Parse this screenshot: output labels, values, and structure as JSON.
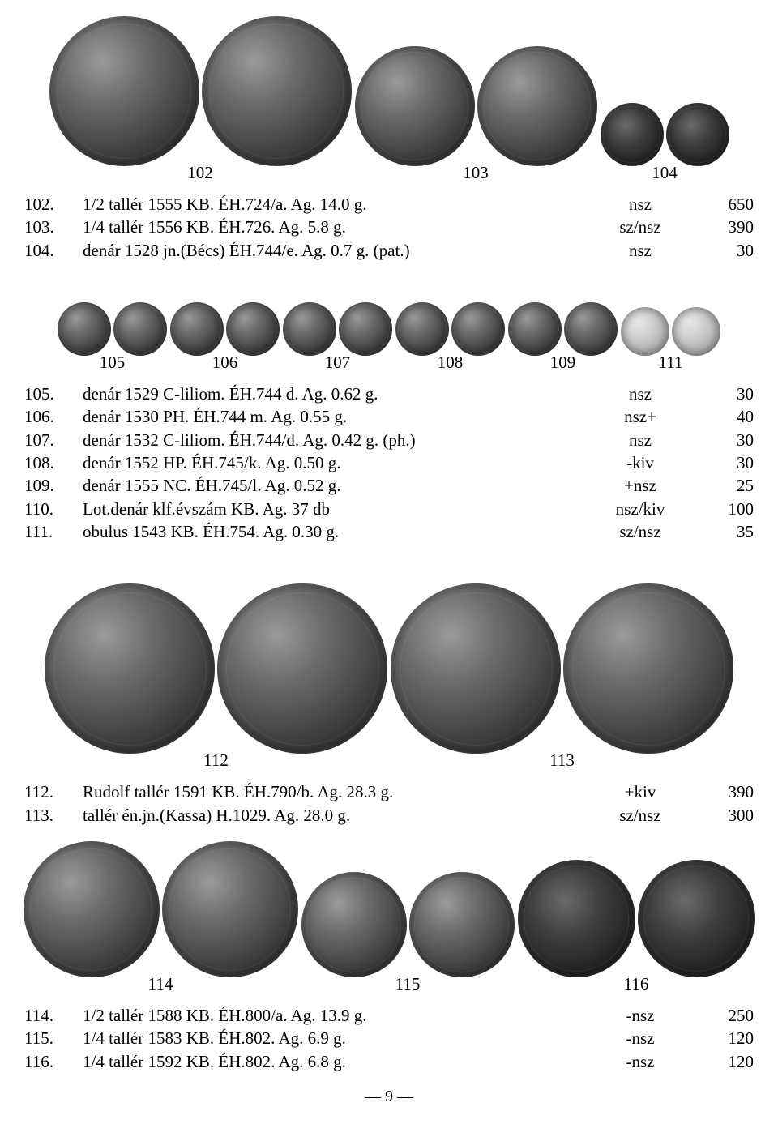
{
  "page_number": "— 9 —",
  "figure1": {
    "groups": [
      {
        "label": "102",
        "sizes": [
          185,
          185
        ]
      },
      {
        "label": "103",
        "sizes": [
          148,
          148
        ]
      },
      {
        "label": "104",
        "sizes": [
          78,
          78
        ],
        "darker": true
      }
    ]
  },
  "lots1": [
    {
      "n": "102.",
      "d": "1/2 tallér 1555 KB. ÉH.724/a. Ag. 14.0 g.",
      "g": "nsz",
      "p": "650"
    },
    {
      "n": "103.",
      "d": "1/4 tallér 1556 KB. ÉH.726. Ag. 5.8 g.",
      "g": "sz/nsz",
      "p": "390"
    },
    {
      "n": "104.",
      "d": "denár 1528 jn.(Bécs) ÉH.744/e. Ag. 0.7 g. (pat.)",
      "g": "nsz",
      "p": "30"
    }
  ],
  "figure2": {
    "groups": [
      {
        "label": "105",
        "sizes": [
          66,
          66
        ]
      },
      {
        "label": "106",
        "sizes": [
          66,
          66
        ]
      },
      {
        "label": "107",
        "sizes": [
          66,
          66
        ]
      },
      {
        "label": "108",
        "sizes": [
          66,
          66
        ]
      },
      {
        "label": "109",
        "sizes": [
          66,
          66
        ]
      },
      {
        "label": "111",
        "sizes": [
          60,
          60
        ],
        "light": true
      }
    ]
  },
  "lots2": [
    {
      "n": "105.",
      "d": "denár 1529 C-liliom. ÉH.744 d. Ag. 0.62 g.",
      "g": "nsz",
      "p": "30"
    },
    {
      "n": "106.",
      "d": "denár 1530 PH. ÉH.744 m. Ag. 0.55 g.",
      "g": "nsz+",
      "p": "40"
    },
    {
      "n": "107.",
      "d": "denár 1532 C-liliom. ÉH.744/d. Ag. 0.42 g. (ph.)",
      "g": "nsz",
      "p": "30"
    },
    {
      "n": "108.",
      "d": "denár 1552 HP. ÉH.745/k. Ag. 0.50 g.",
      "g": "-kiv",
      "p": "30"
    },
    {
      "n": "109.",
      "d": "denár 1555 NC. ÉH.745/l. Ag. 0.52 g.",
      "g": "+nsz",
      "p": "25"
    },
    {
      "n": "110.",
      "d": "Lot.denár klf.évszám KB. Ag.  37 db",
      "g": "nsz/kiv",
      "p": "100"
    },
    {
      "n": "111.",
      "d": "obulus 1543 KB. ÉH.754. Ag. 0.30 g.",
      "g": "sz/nsz",
      "p": "35"
    }
  ],
  "figure3": {
    "groups": [
      {
        "label": "112",
        "sizes": [
          210,
          210
        ]
      },
      {
        "label": "113",
        "sizes": [
          210,
          210
        ]
      }
    ]
  },
  "lots3": [
    {
      "n": "112.",
      "d": "Rudolf tallér 1591 KB. ÉH.790/b. Ag. 28.3 g.",
      "g": "+kiv",
      "p": "390"
    },
    {
      "n": "113.",
      "d": "tallér én.jn.(Kassa) H.1029. Ag. 28.0 g.",
      "g": "sz/nsz",
      "p": "300"
    }
  ],
  "figure4": {
    "groups": [
      {
        "label": "114",
        "sizes": [
          168,
          168
        ]
      },
      {
        "label": "115",
        "sizes": [
          130,
          130
        ]
      },
      {
        "label": "116",
        "sizes": [
          145,
          145
        ],
        "darker": true
      }
    ]
  },
  "lots4": [
    {
      "n": "114.",
      "d": "1/2 tallér 1588 KB. ÉH.800/a. Ag. 13.9 g.",
      "g": "-nsz",
      "p": "250"
    },
    {
      "n": "115.",
      "d": "1/4 tallér 1583 KB. ÉH.802. Ag. 6.9 g.",
      "g": "-nsz",
      "p": "120"
    },
    {
      "n": "116.",
      "d": "1/4 tallér 1592 KB. ÉH.802. Ag. 6.8 g.",
      "g": "-nsz",
      "p": "120"
    }
  ]
}
